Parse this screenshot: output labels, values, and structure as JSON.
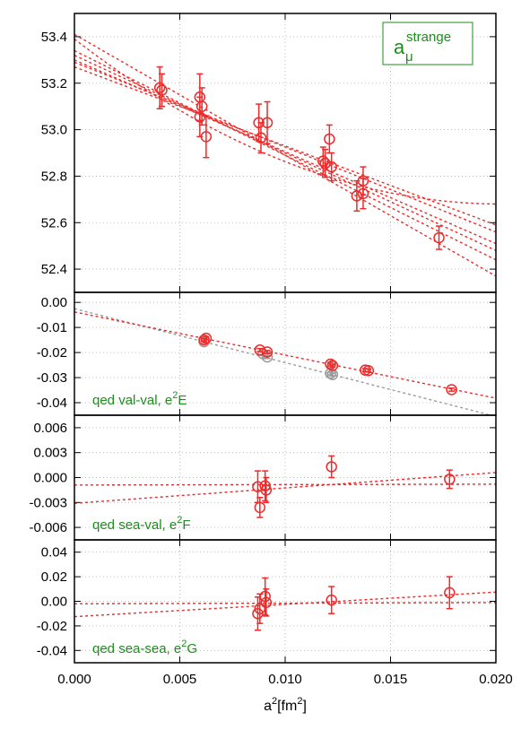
{
  "colors": {
    "data": "#ee2a2a",
    "fit": "#ee2a2a",
    "gray": "#9a9a9a",
    "annotation": "#1a8f1a",
    "frame": "#000000",
    "grid": "#b0b0b0"
  },
  "xaxis": {
    "label_base": "a",
    "label_sup": "2",
    "label_open": "[fm",
    "label_unit_sup": "2",
    "label_close": "]",
    "xlim": [
      0.0,
      0.02
    ],
    "ticks": [
      0.0,
      0.005,
      0.01,
      0.015,
      0.02
    ],
    "tick_labels": [
      "0.000",
      "0.005",
      "0.010",
      "0.015",
      "0.020"
    ]
  },
  "chart_data": [
    {
      "type": "scatter",
      "legend": {
        "base": "a",
        "sub": "μ",
        "sup": "strange",
        "placement": "top-right"
      },
      "ylim": [
        52.3,
        53.5
      ],
      "yticks": [
        52.4,
        52.6,
        52.8,
        53.0,
        53.2,
        53.4
      ],
      "ytick_labels": [
        "52.4",
        "52.6",
        "52.8",
        "53.0",
        "53.2",
        "53.4"
      ],
      "points": [
        {
          "x": 0.00405,
          "y": 53.18,
          "err": 0.09
        },
        {
          "x": 0.00415,
          "y": 53.17,
          "err": 0.07
        },
        {
          "x": 0.00595,
          "y": 53.14,
          "err": 0.1
        },
        {
          "x": 0.00595,
          "y": 53.055,
          "err": 0.085
        },
        {
          "x": 0.00605,
          "y": 53.1,
          "err": 0.08
        },
        {
          "x": 0.00625,
          "y": 52.97,
          "err": 0.09
        },
        {
          "x": 0.00875,
          "y": 53.03,
          "err": 0.08
        },
        {
          "x": 0.00885,
          "y": 52.965,
          "err": 0.065
        },
        {
          "x": 0.00915,
          "y": 53.03,
          "err": 0.09
        },
        {
          "x": 0.0118,
          "y": 52.865,
          "err": 0.06
        },
        {
          "x": 0.0119,
          "y": 52.855,
          "err": 0.06
        },
        {
          "x": 0.0121,
          "y": 52.96,
          "err": 0.06
        },
        {
          "x": 0.0122,
          "y": 52.84,
          "err": 0.06
        },
        {
          "x": 0.0134,
          "y": 52.715,
          "err": 0.065
        },
        {
          "x": 0.0137,
          "y": 52.78,
          "err": 0.06
        },
        {
          "x": 0.0137,
          "y": 52.725,
          "err": 0.065
        },
        {
          "x": 0.0173,
          "y": 52.535,
          "err": 0.05
        }
      ],
      "gray_points": [],
      "fit_lines": [
        {
          "style": "linear",
          "y0": 53.41,
          "slope": -52.0
        },
        {
          "style": "linear",
          "y0": 53.34,
          "slope": -45.0
        },
        {
          "style": "linear",
          "y0": 53.32,
          "slope": -42.0
        },
        {
          "style": "linear",
          "y0": 53.3,
          "slope": -39.5
        },
        {
          "style": "linear",
          "y0": 53.29,
          "slope": -36.5
        },
        {
          "style": "linear",
          "y0": 53.27,
          "slope": -34.0
        },
        {
          "style": "quadratic",
          "y0": 53.39,
          "slope": -70.0,
          "curv": 1725.0
        }
      ],
      "gray_lines": []
    },
    {
      "type": "scatter",
      "annotation": {
        "text": "qed val-val, e",
        "sup": "2",
        "suffix": "E"
      },
      "ylim": [
        -0.045,
        0.004
      ],
      "yticks": [
        0.0,
        -0.01,
        -0.02,
        -0.03,
        -0.04
      ],
      "ytick_labels": [
        "0.00",
        "-0.01",
        "-0.02",
        "-0.03",
        "-0.04"
      ],
      "points": [
        {
          "x": 0.00615,
          "y": -0.015,
          "err": 0.0006
        },
        {
          "x": 0.00625,
          "y": -0.0143,
          "err": 0.0006
        },
        {
          "x": 0.0088,
          "y": -0.019,
          "err": 0.0006
        },
        {
          "x": 0.00915,
          "y": -0.0198,
          "err": 0.0006
        },
        {
          "x": 0.01215,
          "y": -0.0246,
          "err": 0.0007
        },
        {
          "x": 0.01225,
          "y": -0.0252,
          "err": 0.0006
        },
        {
          "x": 0.0138,
          "y": -0.027,
          "err": 0.0006
        },
        {
          "x": 0.01395,
          "y": -0.0272,
          "err": 0.0006
        },
        {
          "x": 0.0179,
          "y": -0.0348,
          "err": 0.0006
        }
      ],
      "gray_points": [
        {
          "x": 0.00615,
          "y": -0.0157,
          "err": 0.0006
        },
        {
          "x": 0.00895,
          "y": -0.0205,
          "err": 0.0006
        },
        {
          "x": 0.00915,
          "y": -0.0218,
          "err": 0.0006
        },
        {
          "x": 0.01215,
          "y": -0.0283,
          "err": 0.0006
        },
        {
          "x": 0.01225,
          "y": -0.0288,
          "err": 0.0006
        }
      ],
      "fit_lines": [
        {
          "style": "linear",
          "y0": -0.0038,
          "slope": -1.72
        }
      ],
      "gray_lines": [
        {
          "style": "linear",
          "y0": -0.0025,
          "slope": -2.15
        }
      ]
    },
    {
      "type": "scatter",
      "annotation": {
        "text": "qed sea-val, e",
        "sup": "2",
        "suffix": "F"
      },
      "ylim": [
        -0.0075,
        0.0075
      ],
      "yticks": [
        0.006,
        0.003,
        0.0,
        -0.003,
        -0.006
      ],
      "ytick_labels": [
        "0.006",
        "0.003",
        "0.000",
        "-0.003",
        "-0.006"
      ],
      "points": [
        {
          "x": 0.0087,
          "y": -0.0011,
          "err": 0.0019
        },
        {
          "x": 0.0088,
          "y": -0.0036,
          "err": 0.0012
        },
        {
          "x": 0.00905,
          "y": -0.001,
          "err": 0.0018
        },
        {
          "x": 0.0091,
          "y": -0.0015,
          "err": 0.0015
        },
        {
          "x": 0.0122,
          "y": 0.0013,
          "err": 0.0013
        },
        {
          "x": 0.0178,
          "y": -0.0002,
          "err": 0.0011
        }
      ],
      "gray_points": [],
      "fit_lines": [
        {
          "style": "linear",
          "y0": -0.0031,
          "slope": 0.185
        },
        {
          "style": "linear",
          "y0": -0.0009,
          "slope": 0.005
        }
      ],
      "gray_lines": []
    },
    {
      "type": "scatter",
      "annotation": {
        "text": "qed sea-sea, e",
        "sup": "2",
        "suffix": "G"
      },
      "ylim": [
        -0.05,
        0.05
      ],
      "yticks": [
        0.04,
        0.02,
        0.0,
        -0.02,
        -0.04
      ],
      "ytick_labels": [
        "0.04",
        "0.02",
        "0.00",
        "-0.02",
        "-0.04"
      ],
      "points": [
        {
          "x": 0.0087,
          "y": -0.01,
          "err": 0.0135
        },
        {
          "x": 0.0088,
          "y": -0.006,
          "err": 0.012
        },
        {
          "x": 0.00905,
          "y": 0.004,
          "err": 0.015
        },
        {
          "x": 0.0091,
          "y": -0.001,
          "err": 0.011
        },
        {
          "x": 0.0122,
          "y": 0.001,
          "err": 0.011
        },
        {
          "x": 0.0178,
          "y": 0.007,
          "err": 0.013
        }
      ],
      "gray_points": [],
      "fit_lines": [
        {
          "style": "linear",
          "y0": -0.0125,
          "slope": 1.0
        },
        {
          "style": "linear",
          "y0": -0.002,
          "slope": 0.05
        }
      ],
      "gray_lines": []
    }
  ]
}
